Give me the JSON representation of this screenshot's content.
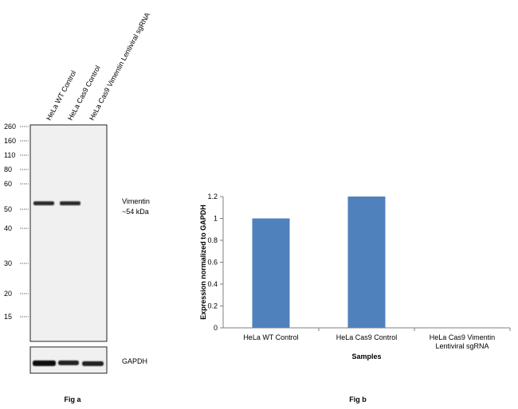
{
  "fig_a": {
    "lane_labels": [
      "HeLa WT Control",
      "HeLa Cas9 Control",
      "HeLa Cas9 Vimentin Lentiviral sgRNA"
    ],
    "marker_labels": [
      "260",
      "160",
      "110",
      "80",
      "60",
      "50",
      "40",
      "30",
      "20",
      "15"
    ],
    "band_label_line1": "Vimentin",
    "band_label_line2": "~54 kDa",
    "loading_label": "GAPDH",
    "caption": "Fig a"
  },
  "fig_b": {
    "caption": "Fig b"
  },
  "chart_data": {
    "type": "bar",
    "categories": [
      "HeLa WT Control",
      "HeLa Cas9 Control",
      "HeLa Cas9 Vimentin Lentiviral sgRNA"
    ],
    "category_lines": [
      [
        "HeLa WT Control"
      ],
      [
        "HeLa Cas9 Control"
      ],
      [
        "HeLa Cas9 Vimentin",
        "Lentiviral sgRNA"
      ]
    ],
    "values": [
      1.0,
      1.2,
      0.0
    ],
    "xlabel": "Samples",
    "ylabel": "Expression  normalized to GAPDH",
    "ylim": [
      0,
      1.2
    ],
    "yticks": [
      0,
      0.2,
      0.4,
      0.6,
      0.8,
      1,
      1.2
    ],
    "ytick_labels": [
      "0",
      "0.2",
      "0.4",
      "0.6",
      "0.8",
      "1",
      "1.2"
    ],
    "bar_color": "#4f81bd",
    "grid": false
  }
}
